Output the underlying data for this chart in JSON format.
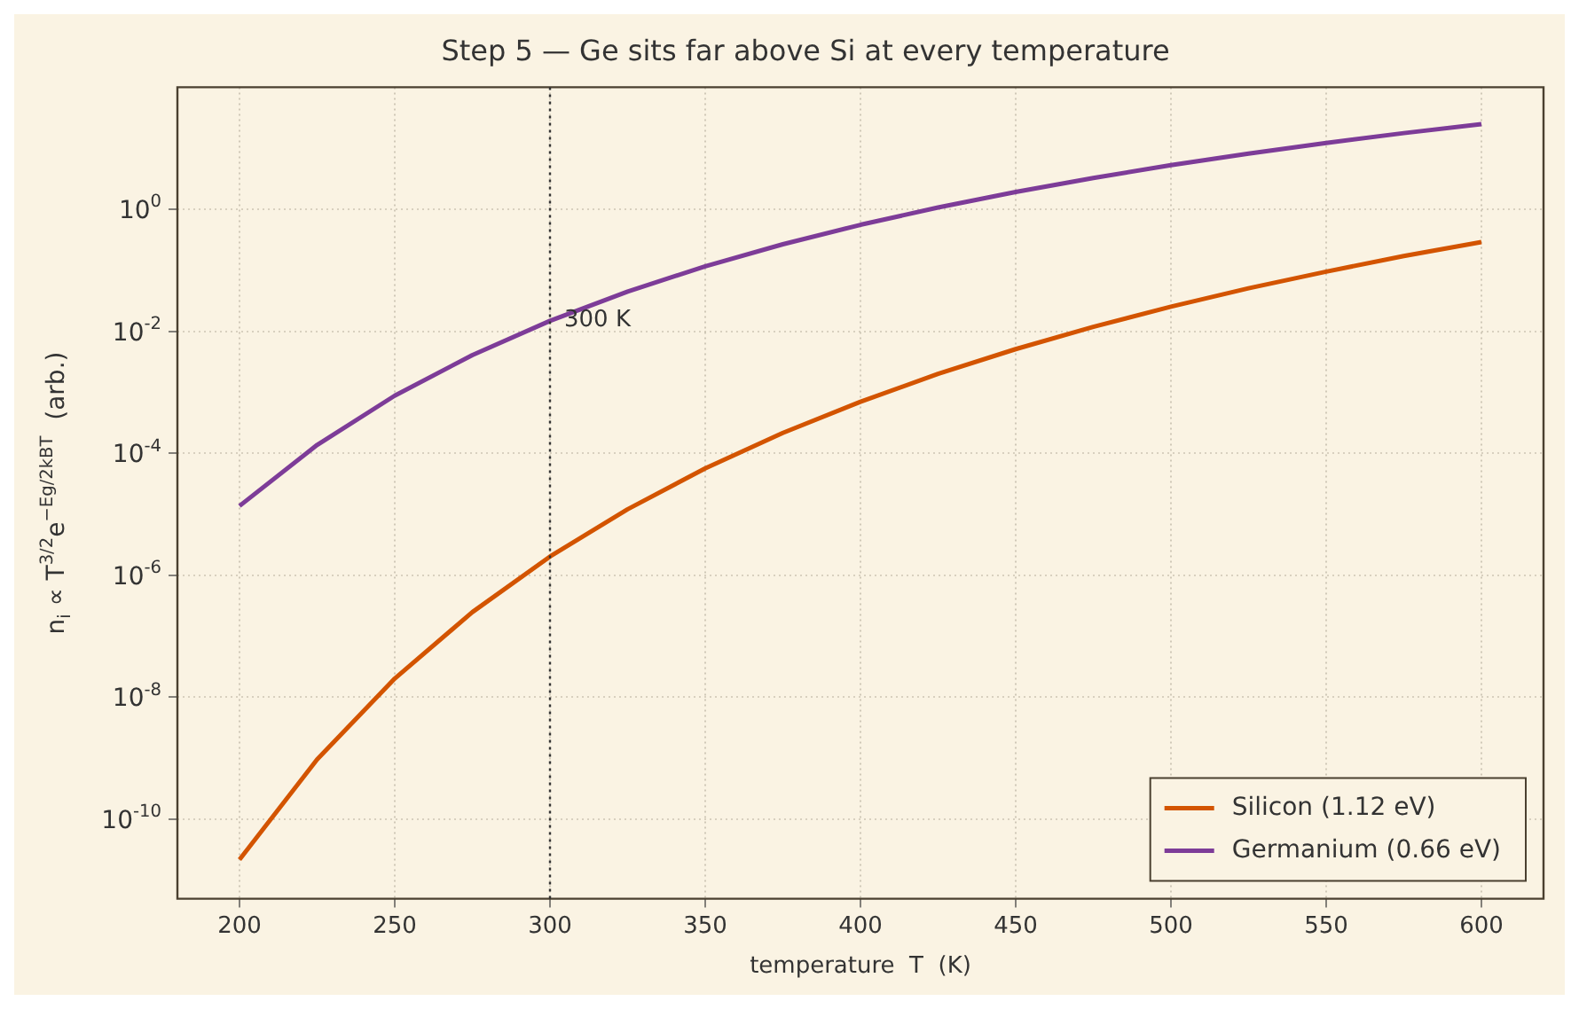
{
  "chart_data": {
    "type": "line",
    "title": "Step 5 — Ge sits far above Si at every temperature",
    "xlabel": "temperature  T  (K)",
    "ylabel": "n$_{i}$ ∝ T$^{3/2}$e$^{−Eg/2kBT}$  (arb.)",
    "x": [
      200,
      225,
      250,
      275,
      300,
      325,
      350,
      375,
      400,
      425,
      450,
      475,
      500,
      525,
      550,
      575,
      600
    ],
    "series": [
      {
        "name": "Silicon (1.12 eV)",
        "color": "#d35400",
        "values": [
          2.19e-11,
          9.6e-10,
          2.03e-08,
          2.49e-07,
          2.03e-06,
          1.21e-05,
          5.65e-05,
          0.000216,
          0.0007,
          0.002,
          0.0051,
          0.0118,
          0.0253,
          0.0506,
          0.095,
          0.171,
          0.29
        ]
      },
      {
        "name": "Germanium (0.66 eV)",
        "color": "#7d3c98",
        "values": [
          1.37e-05,
          0.000137,
          0.00088,
          0.00408,
          0.0148,
          0.0448,
          0.116,
          0.267,
          0.556,
          1.07,
          1.92,
          3.26,
          5.28,
          8.17,
          12.2,
          17.7,
          24.8
        ]
      }
    ],
    "log": "y",
    "xlim": [
      180,
      620
    ],
    "ylim": [
      5e-12,
      100
    ],
    "xticks": [
      200,
      250,
      300,
      350,
      400,
      450,
      500,
      550,
      600
    ],
    "yticks": [
      {
        "value": 1e-10,
        "label": "10$^{-10}$"
      },
      {
        "value": 1e-08,
        "label": "10$^{-8}$"
      },
      {
        "value": 1e-06,
        "label": "10$^{-6}$"
      },
      {
        "value": 0.0001,
        "label": "10$^{-4}$"
      },
      {
        "value": 0.01,
        "label": "10$^{-2}$"
      },
      {
        "value": 1,
        "label": "10$^{0}$"
      }
    ],
    "ref_lines": [
      {
        "axis": "x",
        "value": 300,
        "label": "300 K",
        "color": "#333333",
        "line_style": "dotted"
      }
    ],
    "grid": true,
    "legend": "bottom right",
    "line_style": "solid",
    "marker": "none"
  }
}
